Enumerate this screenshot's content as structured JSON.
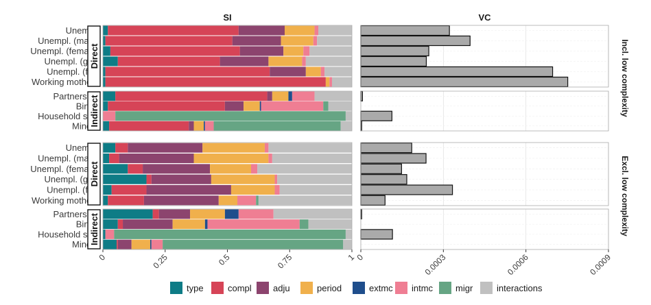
{
  "chart_data": {
    "type": "bar",
    "facet_cols": [
      "SI",
      "VC"
    ],
    "facet_rows": [
      "Incl. low complexity",
      "Excl. low complexity"
    ],
    "groups": [
      "Direct",
      "Indirect"
    ],
    "categories": {
      "Direct": [
        "Unempl.",
        "Unempl. (male)",
        "Unempl. (female)",
        "Unempl. (ger)",
        "Unempl. (for)",
        "Working mothers"
      ],
      "Indirect": [
        "Partnership",
        "Births",
        "Household size",
        "Minors"
      ]
    },
    "legend": {
      "position": "bottom",
      "components": [
        "type",
        "compl",
        "adju",
        "period",
        "extmc",
        "intmc",
        "migr",
        "interactions"
      ],
      "colors": [
        "#0e7c86",
        "#d64457",
        "#8c446e",
        "#f0b04c",
        "#1f4e8c",
        "#ef7e93",
        "#66a584",
        "#c0c0c0"
      ]
    },
    "si": {
      "xlim": [
        0,
        1
      ],
      "ticks": [
        "0",
        "0.25",
        "0.5",
        "0.75",
        "1"
      ],
      "tick_values": [
        0,
        0.25,
        0.5,
        0.75,
        1
      ],
      "panels": [
        {
          "Direct": [
            [
              0.02,
              0.525,
              0.185,
              0.12,
              0,
              0.015,
              0,
              0.135
            ],
            [
              0.01,
              0.51,
              0.195,
              0.13,
              0,
              0.015,
              0,
              0.14
            ],
            [
              0.03,
              0.52,
              0.175,
              0.08,
              0,
              0.025,
              0,
              0.17
            ],
            [
              0.06,
              0.41,
              0.195,
              0.135,
              0,
              0.015,
              0,
              0.185
            ],
            [
              0.01,
              0.66,
              0.145,
              0.06,
              0,
              0.015,
              0,
              0.11
            ],
            [
              0.01,
              0.885,
              0,
              0.015,
              0,
              0.01,
              0,
              0.08
            ]
          ],
          "Indirect": [
            [
              0.05,
              0.61,
              0.02,
              0.065,
              0.015,
              0.09,
              0,
              0.15
            ],
            [
              0.02,
              0.47,
              0.075,
              0.065,
              0.005,
              0.25,
              0.02,
              0.095
            ],
            [
              0,
              0,
              0,
              0,
              0,
              0.05,
              0.925,
              0.025
            ],
            [
              0.025,
              0.32,
              0.02,
              0.04,
              0.005,
              0.035,
              0.51,
              0.045
            ]
          ]
        },
        {
          "Direct": [
            [
              0.05,
              0.05,
              0.3,
              0.25,
              0,
              0.015,
              0,
              0.335
            ],
            [
              0.025,
              0.04,
              0.3,
              0.3,
              0,
              0.015,
              0,
              0.32
            ],
            [
              0.1,
              0.06,
              0.27,
              0.165,
              0,
              0.025,
              0,
              0.38
            ],
            [
              0.175,
              0.02,
              0.24,
              0.255,
              0,
              0.01,
              0,
              0.3
            ],
            [
              0.035,
              0.14,
              0.34,
              0.175,
              0,
              0.02,
              0,
              0.29
            ],
            [
              0.02,
              0.145,
              0.3,
              0.075,
              0,
              0.075,
              0.01,
              0.375
            ]
          ],
          "Indirect": [
            [
              0.2,
              0.025,
              0.125,
              0.14,
              0.055,
              0.14,
              0,
              0.315
            ],
            [
              0.06,
              0.02,
              0.2,
              0.13,
              0.01,
              0.37,
              0.035,
              0.175
            ],
            [
              0.01,
              0,
              0,
              0,
              0,
              0.035,
              0.93,
              0.025
            ],
            [
              0.055,
              0.005,
              0.055,
              0.075,
              0.005,
              0.045,
              0.725,
              0.035
            ]
          ]
        }
      ]
    },
    "vc": {
      "xlim": [
        0,
        0.0009
      ],
      "ticks": [
        "0",
        "0.0003",
        "0.0006",
        "0.0009"
      ],
      "tick_values": [
        0,
        0.0003,
        0.0006,
        0.0009
      ],
      "panels": [
        {
          "Direct": [
            0.000322,
            0.000397,
            0.000247,
            0.000238,
            0.000697,
            0.000752
          ],
          "Indirect": [
            6e-06,
            0,
            0.000113,
            3e-06
          ]
        },
        {
          "Direct": [
            0.000185,
            0.000237,
            0.000148,
            0.000167,
            0.000333,
            8.8e-05
          ],
          "Indirect": [
            3e-06,
            0,
            0.000115,
            0
          ]
        }
      ]
    }
  }
}
